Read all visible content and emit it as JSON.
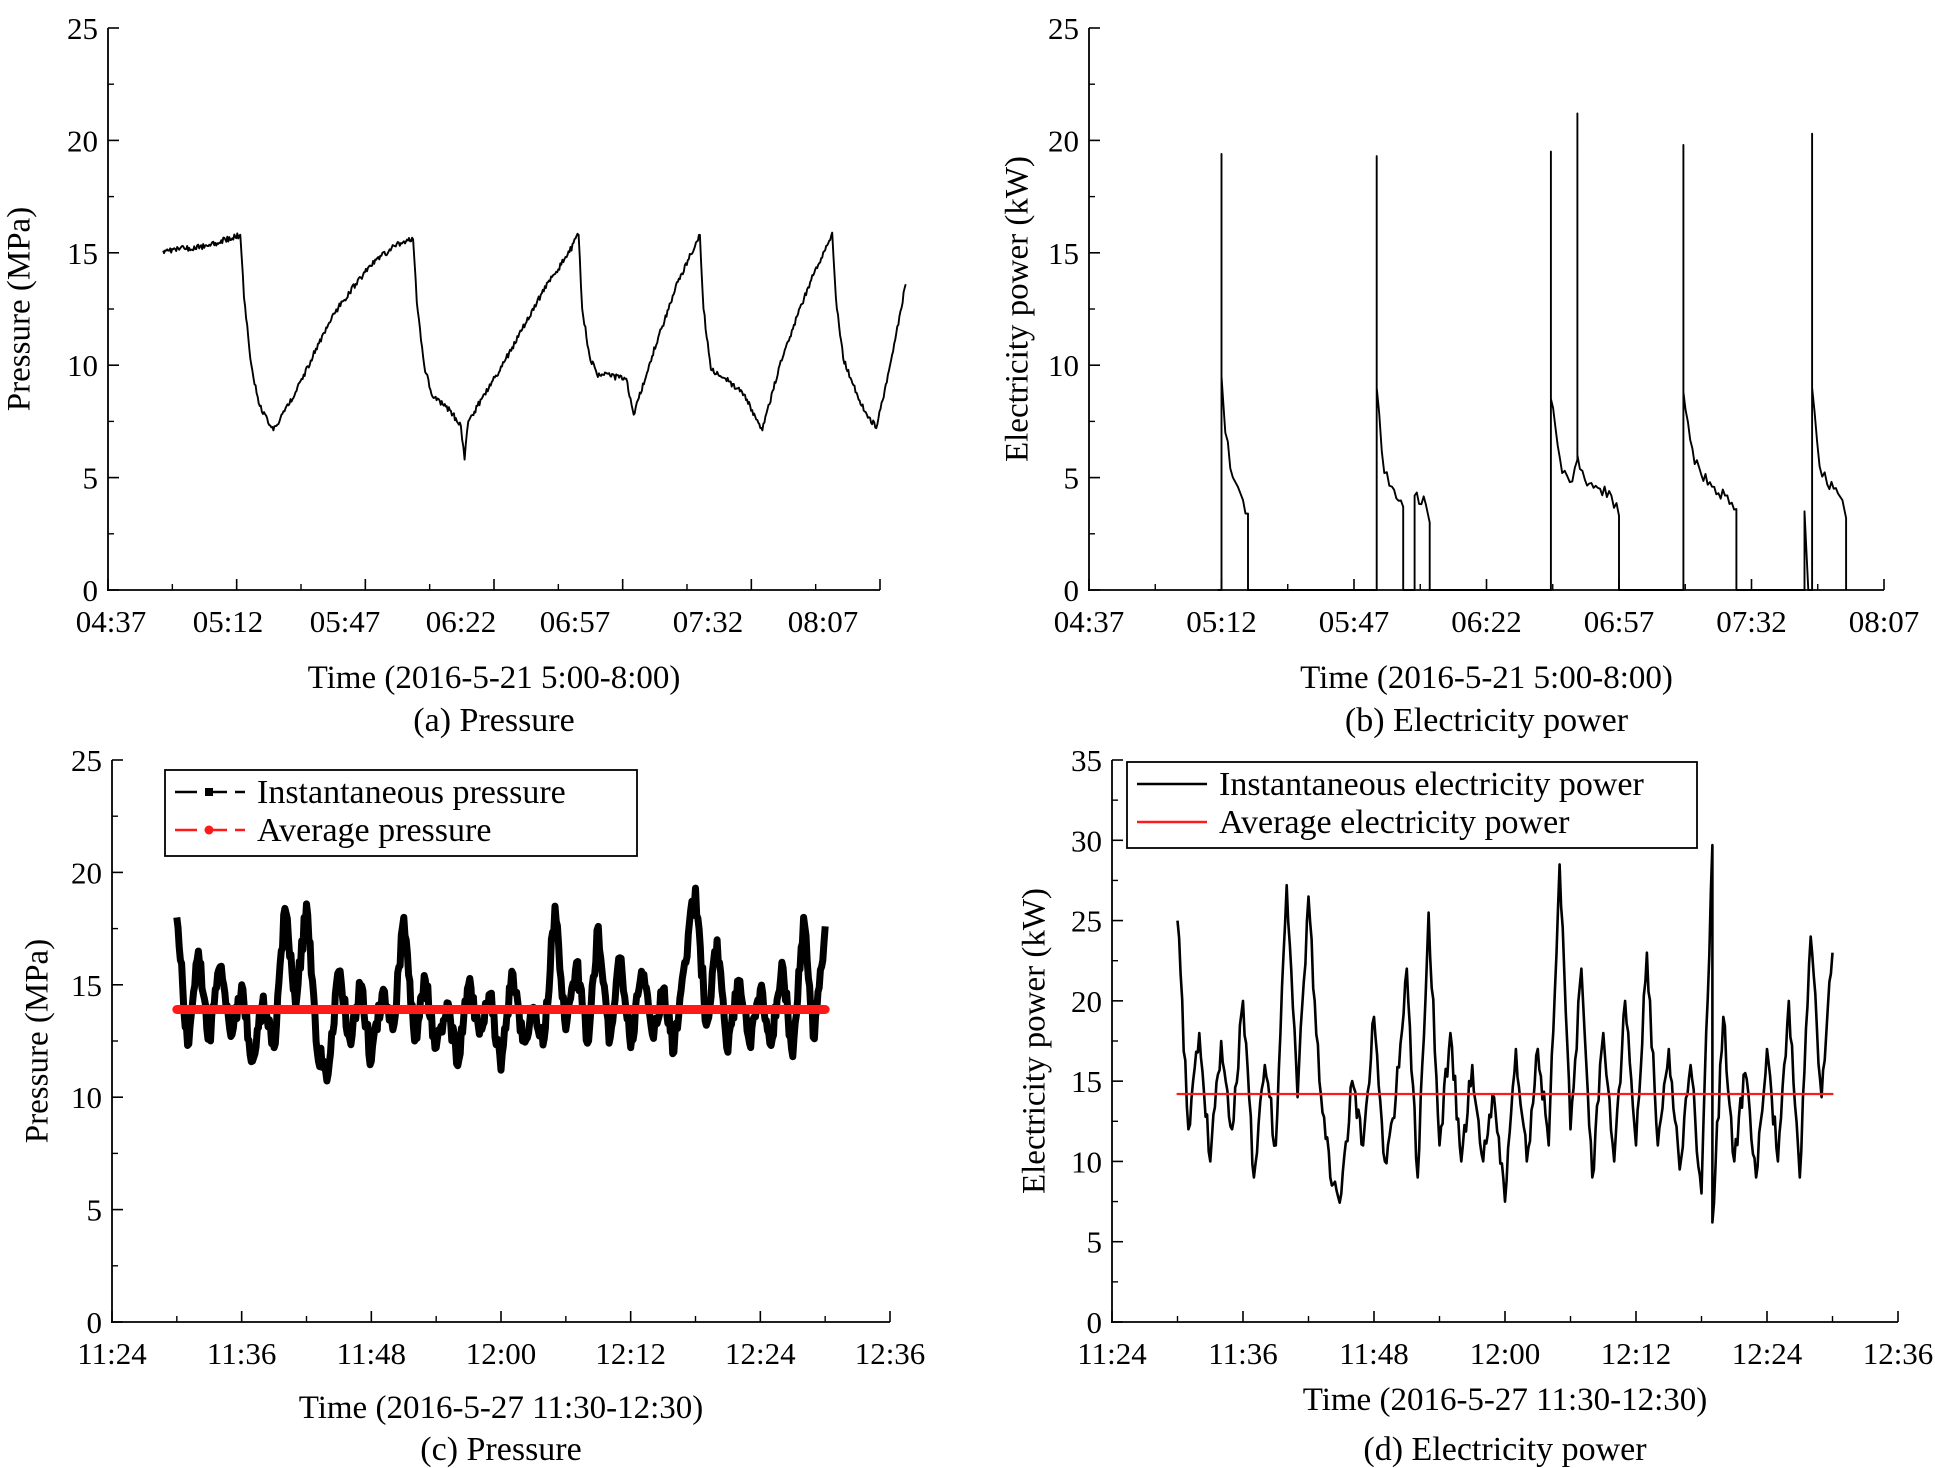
{
  "colors": {
    "line": "#000000",
    "average": "#ff1a1a",
    "background": "#ffffff"
  },
  "chart_data": [
    {
      "panel": "a",
      "type": "line",
      "caption": "(a) Pressure",
      "xlabel": "Time (2016-5-21 5:00-8:00)",
      "ylabel": "Pressure (MPa)",
      "x_unit": "clock time (HH:MM)",
      "xlim": [
        "04:37",
        "08:07"
      ],
      "xticks": [
        "04:37",
        "05:12",
        "05:47",
        "06:22",
        "06:57",
        "07:32",
        "08:07"
      ],
      "ylim": [
        0,
        25
      ],
      "yticks": [
        "0",
        "5",
        "10",
        "15",
        "20",
        "25"
      ],
      "grid": false,
      "legend": null,
      "series": [
        {
          "color": "#000000",
          "points": [
            [
              "04:52",
              15.1
            ],
            [
              "05:04",
              15.3
            ],
            [
              "05:13",
              15.8
            ],
            [
              "05:14",
              13.0
            ],
            [
              "05:16",
              10.0
            ],
            [
              "05:18",
              8.3
            ],
            [
              "05:22",
              7.1
            ],
            [
              "05:28",
              8.8
            ],
            [
              "05:38",
              12.2
            ],
            [
              "05:48",
              14.4
            ],
            [
              "05:55",
              15.3
            ],
            [
              "06:00",
              15.6
            ],
            [
              "06:01",
              12.8
            ],
            [
              "06:03",
              10.0
            ],
            [
              "06:05",
              8.7
            ],
            [
              "06:10",
              8.0
            ],
            [
              "06:13",
              7.3
            ],
            [
              "06:14",
              5.8
            ],
            [
              "06:15",
              7.5
            ],
            [
              "06:25",
              10.2
            ],
            [
              "06:35",
              13.2
            ],
            [
              "06:42",
              14.9
            ],
            [
              "06:45",
              15.8
            ],
            [
              "06:46",
              12.5
            ],
            [
              "06:48",
              10.4
            ],
            [
              "06:50",
              9.6
            ],
            [
              "06:58",
              9.4
            ],
            [
              "07:00",
              7.8
            ],
            [
              "07:05",
              10.4
            ],
            [
              "07:12",
              13.7
            ],
            [
              "07:18",
              15.8
            ],
            [
              "07:19",
              12.5
            ],
            [
              "07:21",
              9.8
            ],
            [
              "07:25",
              9.4
            ],
            [
              "07:30",
              8.7
            ],
            [
              "07:35",
              7.1
            ],
            [
              "07:40",
              10.2
            ],
            [
              "07:48",
              13.7
            ],
            [
              "07:54",
              15.9
            ],
            [
              "07:55",
              13.0
            ],
            [
              "07:57",
              10.3
            ],
            [
              "08:02",
              8.2
            ],
            [
              "08:06",
              7.2
            ],
            [
              "08:10",
              10.2
            ],
            [
              "08:14",
              13.6
            ]
          ]
        }
      ]
    },
    {
      "panel": "b",
      "type": "line",
      "caption": "(b) Electricity power",
      "xlabel": "Time (2016-5-21  5:00-8:00)",
      "ylabel": "Electricity power (kW)",
      "x_unit": "clock time (HH:MM)",
      "xlim": [
        "04:37",
        "08:07"
      ],
      "xticks": [
        "04:37",
        "05:12",
        "05:47",
        "06:22",
        "06:57",
        "07:32",
        "08:07"
      ],
      "ylim": [
        0,
        25
      ],
      "yticks": [
        "0",
        "5",
        "10",
        "15",
        "20",
        "25"
      ],
      "grid": false,
      "legend": null,
      "series": [
        {
          "color": "#000000",
          "points": [
            [
              "05:11",
              0
            ],
            [
              "05:12",
              0
            ],
            [
              "05:12",
              19.4
            ],
            [
              "05:12",
              9.5
            ],
            [
              "05:13",
              7.0
            ],
            [
              "05:15",
              5.0
            ],
            [
              "05:17",
              4.3
            ],
            [
              "05:19",
              3.4
            ],
            [
              "05:19",
              0
            ],
            [
              "05:52",
              0
            ],
            [
              "05:53",
              0
            ],
            [
              "05:53",
              19.3
            ],
            [
              "05:53",
              9.0
            ],
            [
              "05:55",
              5.2
            ],
            [
              "05:57",
              4.6
            ],
            [
              "06:00",
              3.7
            ],
            [
              "06:00",
              0
            ],
            [
              "06:03",
              0
            ],
            [
              "06:03",
              4.2
            ],
            [
              "06:06",
              3.8
            ],
            [
              "06:07",
              3.0
            ],
            [
              "06:07",
              0
            ],
            [
              "06:38",
              0
            ],
            [
              "06:39",
              0
            ],
            [
              "06:39",
              19.5
            ],
            [
              "06:39",
              8.5
            ],
            [
              "06:42",
              5.2
            ],
            [
              "06:44",
              4.8
            ],
            [
              "06:46",
              5.8
            ],
            [
              "06:46",
              21.2
            ],
            [
              "06:46",
              6.0
            ],
            [
              "06:48",
              4.9
            ],
            [
              "06:52",
              4.5
            ],
            [
              "06:55",
              4.2
            ],
            [
              "06:57",
              3.3
            ],
            [
              "06:57",
              0
            ],
            [
              "07:13",
              0
            ],
            [
              "07:14",
              0
            ],
            [
              "07:14",
              19.8
            ],
            [
              "07:14",
              8.8
            ],
            [
              "07:17",
              5.6
            ],
            [
              "07:21",
              4.8
            ],
            [
              "07:25",
              4.2
            ],
            [
              "07:28",
              3.6
            ],
            [
              "07:28",
              0
            ],
            [
              "07:46",
              0
            ],
            [
              "07:46",
              3.5
            ],
            [
              "07:47",
              0
            ],
            [
              "07:48",
              0
            ],
            [
              "07:48",
              20.3
            ],
            [
              "07:48",
              9.0
            ],
            [
              "07:50",
              5.5
            ],
            [
              "07:52",
              4.7
            ],
            [
              "07:56",
              4.0
            ],
            [
              "07:57",
              3.2
            ],
            [
              "07:57",
              0
            ]
          ]
        }
      ]
    },
    {
      "panel": "c",
      "type": "line",
      "caption": "(c) Pressure",
      "xlabel": "Time (2016-5-27 11:30-12:30)",
      "ylabel": "Pressure (MPa)",
      "x_unit": "clock time (HH:MM)",
      "xlim": [
        "11:24",
        "12:36"
      ],
      "xticks": [
        "11:24",
        "11:36",
        "11:48",
        "12:00",
        "12:12",
        "12:24",
        "12:36"
      ],
      "ylim": [
        0,
        25
      ],
      "yticks": [
        "0",
        "5",
        "10",
        "15",
        "20",
        "25"
      ],
      "grid": false,
      "legend": {
        "position": "top-left",
        "entries": [
          "Instantaneous pressure",
          "Average pressure"
        ]
      },
      "series": [
        {
          "name": "Instantaneous pressure",
          "color": "#000000",
          "points": [
            [
              "11:30",
              18.0
            ],
            [
              "11:31",
              12.3
            ],
            [
              "11:32",
              16.5
            ],
            [
              "11:33",
              12.6
            ],
            [
              "11:34",
              15.8
            ],
            [
              "11:35",
              12.7
            ],
            [
              "11:36",
              15.0
            ],
            [
              "11:37",
              11.6
            ],
            [
              "11:38",
              14.5
            ],
            [
              "11:39",
              12.2
            ],
            [
              "11:40",
              18.4
            ],
            [
              "11:41",
              14.0
            ],
            [
              "11:42",
              18.6
            ],
            [
              "11:43",
              12.0
            ],
            [
              "11:44",
              11.0
            ],
            [
              "11:45",
              15.6
            ],
            [
              "11:46",
              12.6
            ],
            [
              "11:47",
              15.0
            ],
            [
              "11:48",
              11.6
            ],
            [
              "11:49",
              14.6
            ],
            [
              "11:50",
              13.0
            ],
            [
              "11:51",
              18.0
            ],
            [
              "11:52",
              12.5
            ],
            [
              "11:53",
              15.2
            ],
            [
              "11:54",
              12.2
            ],
            [
              "11:55",
              14.2
            ],
            [
              "11:56",
              11.4
            ],
            [
              "11:57",
              15.0
            ],
            [
              "11:58",
              12.8
            ],
            [
              "11:59",
              14.6
            ],
            [
              "12:00",
              11.2
            ],
            [
              "12:01",
              15.6
            ],
            [
              "12:02",
              12.5
            ],
            [
              "12:03",
              14.0
            ],
            [
              "12:04",
              12.6
            ],
            [
              "12:05",
              18.5
            ],
            [
              "12:06",
              13.0
            ],
            [
              "12:07",
              16.0
            ],
            [
              "12:08",
              12.4
            ],
            [
              "12:09",
              17.6
            ],
            [
              "12:10",
              12.4
            ],
            [
              "12:11",
              16.2
            ],
            [
              "12:12",
              12.2
            ],
            [
              "12:13",
              15.6
            ],
            [
              "12:14",
              12.8
            ],
            [
              "12:15",
              14.8
            ],
            [
              "12:16",
              12.0
            ],
            [
              "12:17",
              16.0
            ],
            [
              "12:18",
              19.3
            ],
            [
              "12:19",
              13.2
            ],
            [
              "12:20",
              17.0
            ],
            [
              "12:21",
              12.0
            ],
            [
              "12:22",
              15.2
            ],
            [
              "12:23",
              12.4
            ],
            [
              "12:24",
              14.8
            ],
            [
              "12:25",
              12.3
            ],
            [
              "12:26",
              16.0
            ],
            [
              "12:27",
              11.8
            ],
            [
              "12:28",
              18.0
            ],
            [
              "12:29",
              12.6
            ],
            [
              "12:30",
              17.6
            ]
          ]
        },
        {
          "name": "Average pressure",
          "color": "#ff1a1a",
          "points": [
            [
              "11:30",
              13.9
            ],
            [
              "12:30",
              13.9
            ]
          ]
        }
      ]
    },
    {
      "panel": "d",
      "type": "line",
      "caption": "(d) Electricity power",
      "xlabel": "Time (2016-5-27  11:30-12:30)",
      "ylabel": "Electricity power (kW)",
      "x_unit": "clock time (HH:MM)",
      "xlim": [
        "11:24",
        "12:36"
      ],
      "xticks": [
        "11:24",
        "11:36",
        "11:48",
        "12:00",
        "12:12",
        "12:24",
        "12:36"
      ],
      "ylim": [
        0,
        35
      ],
      "yticks": [
        "0",
        "5",
        "10",
        "15",
        "20",
        "25",
        "30",
        "35"
      ],
      "grid": false,
      "legend": {
        "position": "top-left",
        "entries": [
          "Instantaneous electricity power",
          "Average electricity power"
        ]
      },
      "series": [
        {
          "name": "Instantaneous electricity power",
          "color": "#000000",
          "points": [
            [
              "11:30",
              25.0
            ],
            [
              "11:31",
              12.0
            ],
            [
              "11:32",
              18.0
            ],
            [
              "11:33",
              10.0
            ],
            [
              "11:34",
              17.5
            ],
            [
              "11:35",
              12.0
            ],
            [
              "11:36",
              20.0
            ],
            [
              "11:37",
              9.0
            ],
            [
              "11:38",
              16.0
            ],
            [
              "11:39",
              11.0
            ],
            [
              "11:40",
              27.2
            ],
            [
              "11:41",
              14.0
            ],
            [
              "11:42",
              26.5
            ],
            [
              "11:43",
              15.0
            ],
            [
              "11:44",
              9.0
            ],
            [
              "11:45",
              8.0
            ],
            [
              "11:46",
              15.0
            ],
            [
              "11:47",
              11.0
            ],
            [
              "11:48",
              19.0
            ],
            [
              "11:49",
              10.0
            ],
            [
              "11:50",
              14.0
            ],
            [
              "11:51",
              22.0
            ],
            [
              "11:52",
              9.0
            ],
            [
              "11:53",
              25.5
            ],
            [
              "11:54",
              11.0
            ],
            [
              "11:55",
              18.0
            ],
            [
              "11:56",
              10.0
            ],
            [
              "11:57",
              16.0
            ],
            [
              "11:58",
              10.0
            ],
            [
              "11:59",
              14.0
            ],
            [
              "12:00",
              7.5
            ],
            [
              "12:01",
              17.0
            ],
            [
              "12:02",
              10.0
            ],
            [
              "12:03",
              17.0
            ],
            [
              "12:04",
              11.0
            ],
            [
              "12:05",
              28.5
            ],
            [
              "12:06",
              12.0
            ],
            [
              "12:07",
              22.0
            ],
            [
              "12:08",
              9.0
            ],
            [
              "12:09",
              18.0
            ],
            [
              "12:10",
              10.0
            ],
            [
              "12:11",
              20.0
            ],
            [
              "12:12",
              11.0
            ],
            [
              "12:13",
              23.0
            ],
            [
              "12:14",
              11.0
            ],
            [
              "12:15",
              17.0
            ],
            [
              "12:16",
              9.5
            ],
            [
              "12:17",
              16.0
            ],
            [
              "12:18",
              8.0
            ],
            [
              "12:19",
              29.7
            ],
            [
              "12:19",
              6.2
            ],
            [
              "12:20",
              19.0
            ],
            [
              "12:21",
              10.0
            ],
            [
              "12:22",
              15.5
            ],
            [
              "12:23",
              9.0
            ],
            [
              "12:24",
              17.0
            ],
            [
              "12:25",
              10.0
            ],
            [
              "12:26",
              20.0
            ],
            [
              "12:27",
              9.0
            ],
            [
              "12:28",
              24.0
            ],
            [
              "12:29",
              14.0
            ],
            [
              "12:30",
              23.0
            ]
          ]
        },
        {
          "name": "Average electricity power",
          "color": "#ff1a1a",
          "points": [
            [
              "11:30",
              14.2
            ],
            [
              "12:30",
              14.2
            ]
          ]
        }
      ]
    }
  ]
}
